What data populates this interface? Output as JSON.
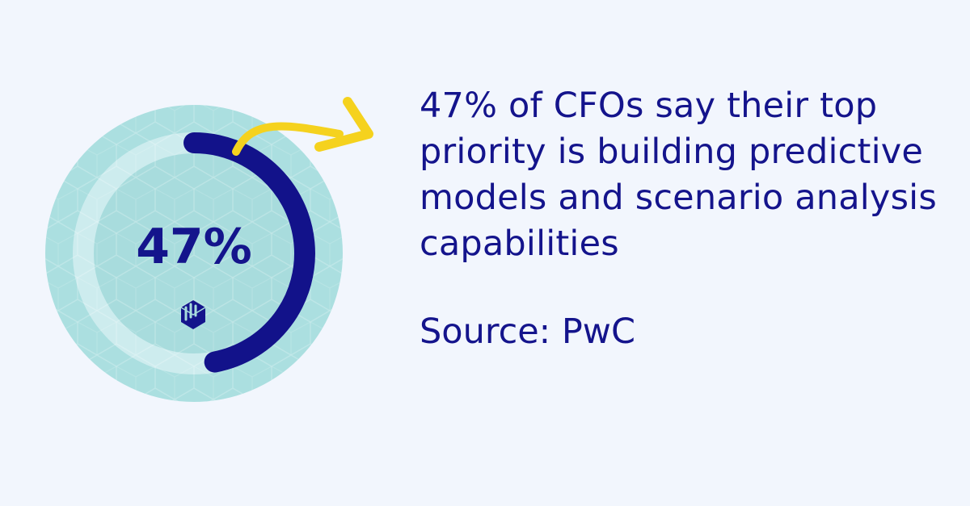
{
  "chart_data": {
    "type": "pie",
    "values": [
      47
    ],
    "label": "47%"
  },
  "headline": "47% of CFOs say their top priority is building predictive models and scenario analysis capabilities",
  "source": "Source: PwC",
  "colors": {
    "background": "#f2f6fd",
    "text": "#14148c",
    "ring_progress": "#12128a",
    "ring_outer": "#abdfe0",
    "ring_track": "#cdecee",
    "ring_inner": "#a8dcdd",
    "arrow": "#f5d21e"
  },
  "icons": [
    "arrow-icon",
    "logo-icon"
  ]
}
